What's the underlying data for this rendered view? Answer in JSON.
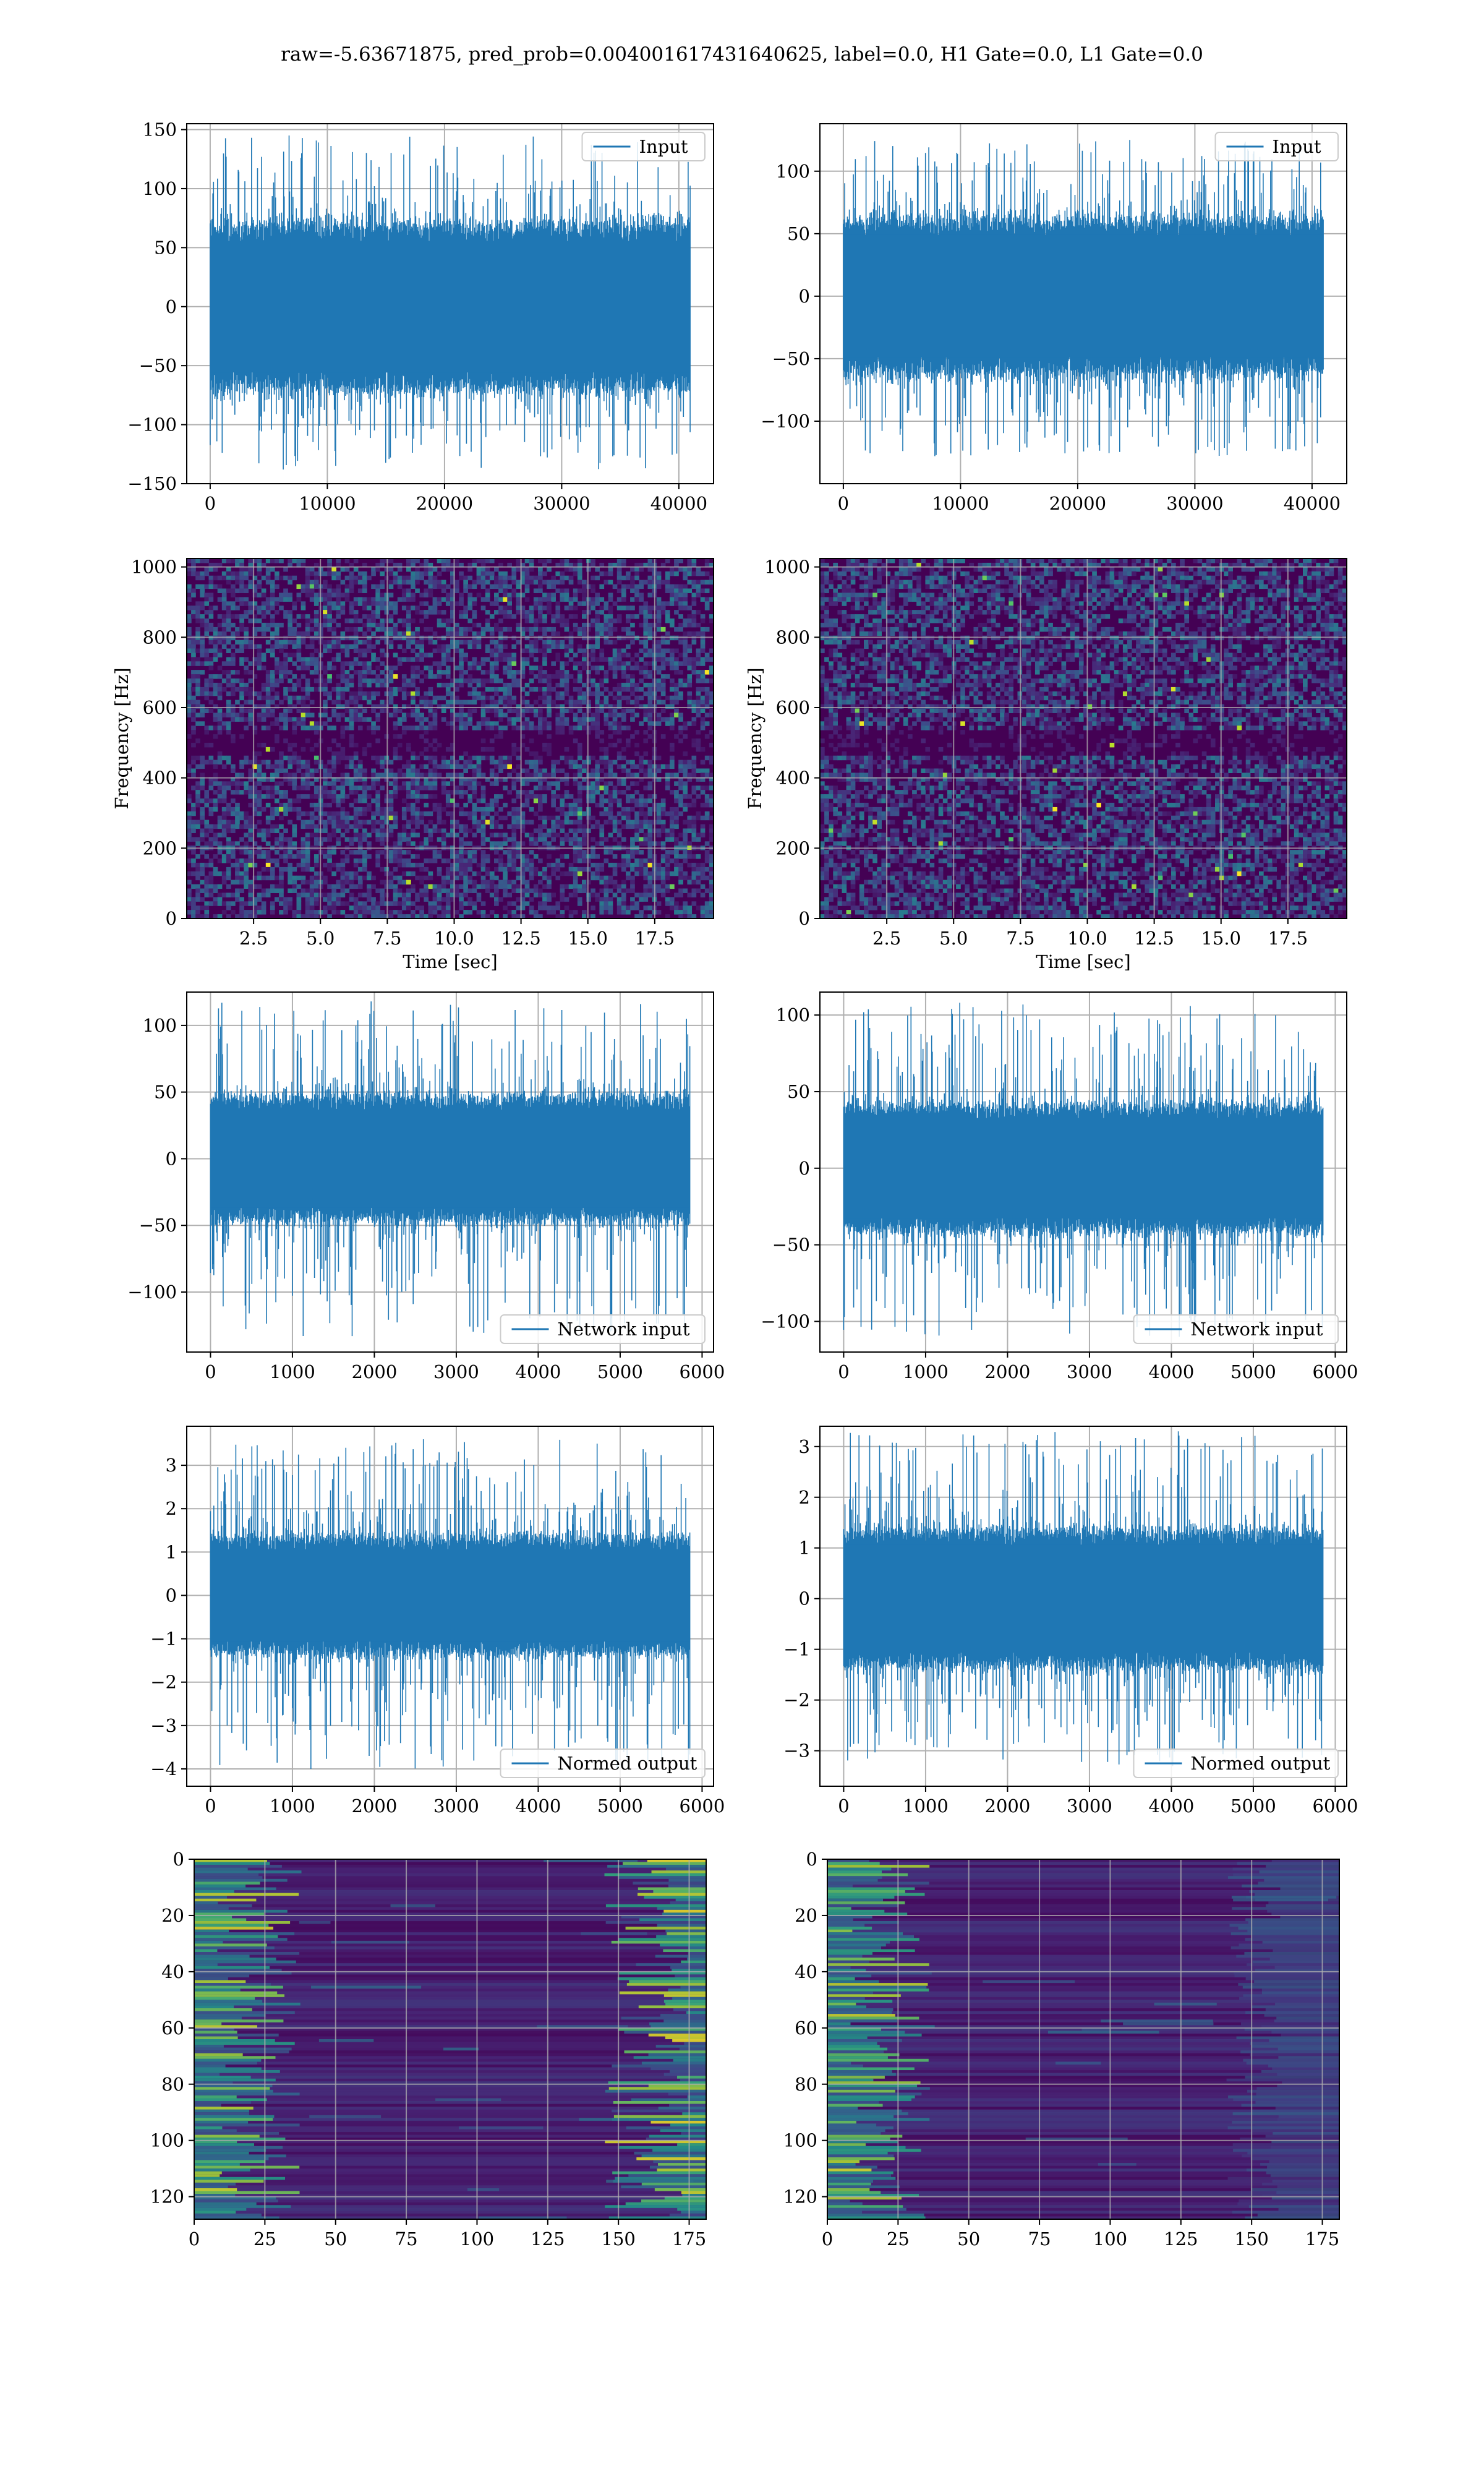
{
  "figure": {
    "suptitle": "raw=-5.63671875, pred_prob=0.004001617431640625, label=0.0, H1 Gate=0.0, L1 Gate=0.0"
  },
  "colors": {
    "line": "#1f77b4",
    "grid": "#b0b0b0",
    "spec_bg": "#440154",
    "viridis": [
      "#440154",
      "#482878",
      "#3e4a89",
      "#31688e",
      "#26828e",
      "#1f9e89",
      "#35b779",
      "#6ece58",
      "#b5de2b",
      "#fde725"
    ]
  },
  "chart_data": [
    {
      "id": "h1-input",
      "type": "line",
      "legend": "Input",
      "legend_loc": "upper right",
      "xlim": [
        -2000,
        42960
      ],
      "ylim": [
        -150,
        155
      ],
      "xticks": [
        0,
        10000,
        20000,
        30000,
        40000
      ],
      "yticks": [
        -150,
        -100,
        -50,
        0,
        50,
        100,
        150
      ],
      "x_range": [
        0,
        40960
      ],
      "n_points": 40960,
      "band": [
        -68,
        68
      ],
      "max": 145,
      "min": -138,
      "grid": true
    },
    {
      "id": "l1-input",
      "type": "line",
      "legend": "Input",
      "legend_loc": "upper right",
      "xlim": [
        -2000,
        42960
      ],
      "ylim": [
        -150,
        138
      ],
      "xticks": [
        0,
        10000,
        20000,
        30000,
        40000
      ],
      "yticks": [
        -100,
        -50,
        0,
        50,
        100
      ],
      "x_range": [
        0,
        40960
      ],
      "n_points": 40960,
      "band": [
        -60,
        60
      ],
      "max": 125,
      "min": -128,
      "grid": true
    },
    {
      "id": "h1-spectrogram",
      "type": "heatmap",
      "xlabel": "Time [sec]",
      "ylabel": "Frequency [Hz]",
      "xlim": [
        0,
        19.7
      ],
      "ylim": [
        0,
        1024
      ],
      "xticks": [
        2.5,
        5.0,
        7.5,
        10.0,
        12.5,
        15.0,
        17.5
      ],
      "yticks": [
        0,
        200,
        400,
        600,
        800,
        1000
      ],
      "dark_band_hz": [
        470,
        530
      ],
      "grid": true
    },
    {
      "id": "l1-spectrogram",
      "type": "heatmap",
      "xlabel": "Time [sec]",
      "ylabel": "Frequency [Hz]",
      "xlim": [
        0,
        19.7
      ],
      "ylim": [
        0,
        1024
      ],
      "xticks": [
        2.5,
        5.0,
        7.5,
        10.0,
        12.5,
        15.0,
        17.5
      ],
      "yticks": [
        0,
        200,
        400,
        600,
        800,
        1000
      ],
      "dark_band_hz": [
        470,
        530
      ],
      "grid": true
    },
    {
      "id": "h1-network-input",
      "type": "line",
      "legend": "Network input",
      "legend_loc": "lower right",
      "xlim": [
        -290,
        6140
      ],
      "ylim": [
        -145,
        125
      ],
      "xticks": [
        0,
        1000,
        2000,
        3000,
        4000,
        5000,
        6000
      ],
      "yticks": [
        -100,
        -50,
        0,
        50,
        100
      ],
      "x_range": [
        0,
        5850
      ],
      "n_points": 5850,
      "band": [
        -45,
        45
      ],
      "max": 118,
      "min": -133,
      "grid": true
    },
    {
      "id": "l1-network-input",
      "type": "line",
      "legend": "Network input",
      "legend_loc": "lower right",
      "xlim": [
        -290,
        6140
      ],
      "ylim": [
        -120,
        115
      ],
      "xticks": [
        0,
        1000,
        2000,
        3000,
        4000,
        5000,
        6000
      ],
      "yticks": [
        -100,
        -50,
        0,
        50,
        100
      ],
      "x_range": [
        0,
        5850
      ],
      "n_points": 5850,
      "band": [
        -40,
        40
      ],
      "max": 108,
      "min": -110,
      "grid": true
    },
    {
      "id": "h1-normed-output",
      "type": "line",
      "legend": "Normed output",
      "legend_loc": "lower right",
      "xlim": [
        -290,
        6140
      ],
      "ylim": [
        -4.4,
        3.9
      ],
      "xticks": [
        0,
        1000,
        2000,
        3000,
        4000,
        5000,
        6000
      ],
      "yticks": [
        -4,
        -3,
        -2,
        -1,
        0,
        1,
        2,
        3
      ],
      "x_range": [
        0,
        5850
      ],
      "n_points": 5850,
      "band": [
        -1.3,
        1.3
      ],
      "max": 3.6,
      "min": -4.0,
      "grid": true
    },
    {
      "id": "l1-normed-output",
      "type": "line",
      "legend": "Normed output",
      "legend_loc": "lower right",
      "xlim": [
        -290,
        6140
      ],
      "ylim": [
        -3.7,
        3.4
      ],
      "xticks": [
        0,
        1000,
        2000,
        3000,
        4000,
        5000,
        6000
      ],
      "yticks": [
        -3,
        -2,
        -1,
        0,
        1,
        2,
        3
      ],
      "x_range": [
        0,
        5850
      ],
      "n_points": 5850,
      "band": [
        -1.3,
        1.3
      ],
      "max": 3.3,
      "min": -3.3,
      "grid": true
    },
    {
      "id": "h1-features",
      "type": "heatmap",
      "xlim": [
        0,
        181
      ],
      "ylim": [
        128,
        0
      ],
      "xticks": [
        0,
        25,
        50,
        75,
        100,
        125,
        150,
        175
      ],
      "yticks": [
        0,
        20,
        40,
        60,
        80,
        100,
        120
      ],
      "bright_edges": "left and right",
      "grid": true
    },
    {
      "id": "l1-features",
      "type": "heatmap",
      "xlim": [
        0,
        181
      ],
      "ylim": [
        128,
        0
      ],
      "xticks": [
        0,
        25,
        50,
        75,
        100,
        125,
        150,
        175
      ],
      "yticks": [
        0,
        20,
        40,
        60,
        80,
        100,
        120
      ],
      "bright_edges": "left",
      "grid": true
    }
  ]
}
